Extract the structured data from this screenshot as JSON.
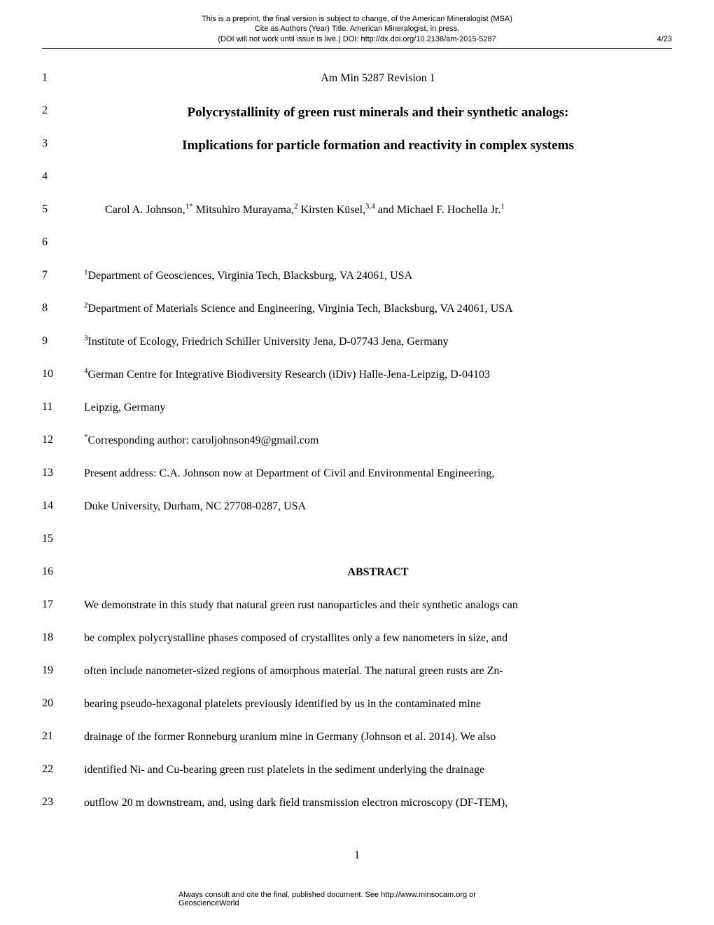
{
  "header": {
    "line1": "This is a preprint, the final version is subject to change, of the American Mineralogist (MSA)",
    "line2": "Cite as Authors (Year) Title. American Mineralogist, in press.",
    "line3": "(DOI will not work until issue is live.) DOI: http://dx.doi.org/10.2138/am-2015-5287",
    "page_indicator": "4/23"
  },
  "lines": [
    {
      "num": "1",
      "text": "Am Min 5287 Revision 1",
      "class": "centered"
    },
    {
      "num": "2",
      "text": "Polycrystallinity of green rust minerals and their synthetic analogs:",
      "class": "centered title-bold"
    },
    {
      "num": "3",
      "text": "Implications for particle formation and reactivity in complex systems",
      "class": "centered title-bold"
    },
    {
      "num": "4",
      "text": "",
      "class": ""
    },
    {
      "num": "5",
      "html": "Carol A. Johnson,<sup>1*</sup> Mitsuhiro Murayama,<sup>2</sup> Kirsten Küsel,<sup>3,4</sup> and Michael F. Hochella Jr.<sup>1</sup>",
      "class": "indent"
    },
    {
      "num": "6",
      "text": "",
      "class": ""
    },
    {
      "num": "7",
      "html": "<sup>1</sup>Department of Geosciences, Virginia Tech, Blacksburg, VA 24061, USA",
      "class": ""
    },
    {
      "num": "8",
      "html": "<sup>2</sup>Department of Materials Science and Engineering, Virginia Tech, Blacksburg, VA 24061, USA",
      "class": ""
    },
    {
      "num": "9",
      "html": "<sup>3</sup>Institute of Ecology, Friedrich Schiller University Jena, D-07743 Jena, Germany",
      "class": ""
    },
    {
      "num": "10",
      "html": "<sup>4</sup>German Centre for Integrative Biodiversity Research (iDiv) Halle-Jena-Leipzig, D-04103",
      "class": ""
    },
    {
      "num": "11",
      "text": "Leipzig, Germany",
      "class": ""
    },
    {
      "num": "12",
      "html": "<sup>*</sup>Corresponding author: caroljohnson49@gmail.com",
      "class": ""
    },
    {
      "num": "13",
      "text": "Present address: C.A. Johnson now at Department of Civil and Environmental Engineering,",
      "class": ""
    },
    {
      "num": "14",
      "text": "Duke University, Durham, NC 27708-0287, USA",
      "class": ""
    },
    {
      "num": "15",
      "text": "",
      "class": ""
    },
    {
      "num": "16",
      "text": "ABSTRACT",
      "class": "abstract-heading"
    },
    {
      "num": "17",
      "text": "We demonstrate in this study that natural green rust nanoparticles and their synthetic analogs can",
      "class": ""
    },
    {
      "num": "18",
      "text": "be complex polycrystalline phases composed of crystallites only a few nanometers in size, and",
      "class": ""
    },
    {
      "num": "19",
      "text": "often include nanometer-sized regions of amorphous material. The natural green rusts are Zn-",
      "class": ""
    },
    {
      "num": "20",
      "text": "bearing pseudo-hexagonal platelets previously identified by us in the contaminated mine",
      "class": ""
    },
    {
      "num": "21",
      "text": "drainage of the former Ronneburg uranium mine in Germany (Johnson et al. 2014).  We also",
      "class": ""
    },
    {
      "num": "22",
      "text": "identified Ni- and Cu-bearing green rust platelets in the sediment underlying the drainage",
      "class": ""
    },
    {
      "num": "23",
      "text": "outflow 20 m downstream, and, using dark field transmission electron microscopy (DF-TEM),",
      "class": ""
    }
  ],
  "page_number": "1",
  "footer": "Always consult and cite the final, published document. See http://www.minsocam.org or GeoscienceWorld",
  "colors": {
    "background": "#ffffff",
    "text": "#000000"
  },
  "typography": {
    "header_fontsize": 11,
    "body_fontsize": 16,
    "title_fontsize": 19,
    "line_height": 47
  }
}
